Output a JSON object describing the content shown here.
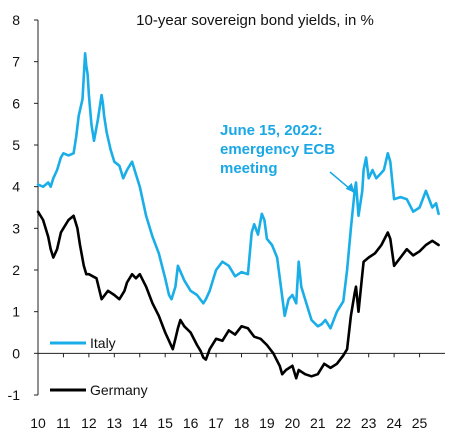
{
  "chart_data": {
    "type": "line",
    "title": "10-year sovereign bond yields, in %",
    "xlabel": "",
    "ylabel": "",
    "xlim": [
      2010,
      2026
    ],
    "ylim": [
      -1,
      8
    ],
    "grid": false,
    "legend_placement": "bottom-left",
    "x_ticks": [
      "10",
      "11",
      "12",
      "13",
      "14",
      "15",
      "16",
      "17",
      "18",
      "19",
      "20",
      "21",
      "22",
      "23",
      "24",
      "25"
    ],
    "y_ticks": [
      "-1",
      "0",
      "1",
      "2",
      "3",
      "4",
      "5",
      "6",
      "7",
      "8"
    ],
    "annotation": {
      "lines": [
        "June 15, 2022:",
        "emergency ECB",
        "meeting"
      ],
      "color": "#1aa7e6",
      "arrow_to": [
        2022.45,
        3.85
      ]
    },
    "series": [
      {
        "name": "Italy",
        "color": "#19aee8",
        "x": [
          2010.0,
          2010.2,
          2010.4,
          2010.5,
          2010.6,
          2010.75,
          2010.9,
          2011.0,
          2011.2,
          2011.4,
          2011.5,
          2011.6,
          2011.75,
          2011.85,
          2011.9,
          2011.95,
          2012.0,
          2012.1,
          2012.2,
          2012.35,
          2012.5,
          2012.55,
          2012.6,
          2012.7,
          2012.85,
          2013.0,
          2013.2,
          2013.35,
          2013.5,
          2013.7,
          2013.85,
          2014.0,
          2014.25,
          2014.5,
          2014.75,
          2015.0,
          2015.15,
          2015.25,
          2015.4,
          2015.5,
          2015.75,
          2016.0,
          2016.25,
          2016.5,
          2016.6,
          2016.75,
          2016.9,
          2017.0,
          2017.25,
          2017.5,
          2017.75,
          2018.0,
          2018.25,
          2018.4,
          2018.5,
          2018.65,
          2018.8,
          2018.9,
          2019.0,
          2019.2,
          2019.4,
          2019.55,
          2019.7,
          2019.85,
          2020.0,
          2020.15,
          2020.25,
          2020.35,
          2020.5,
          2020.75,
          2021.0,
          2021.15,
          2021.3,
          2021.5,
          2021.75,
          2022.0,
          2022.15,
          2022.3,
          2022.45,
          2022.5,
          2022.6,
          2022.75,
          2022.8,
          2022.9,
          2023.0,
          2023.15,
          2023.3,
          2023.45,
          2023.6,
          2023.75,
          2023.85,
          2024.0,
          2024.25,
          2024.5,
          2024.75,
          2025.0,
          2025.25,
          2025.5,
          2025.65,
          2025.75
        ],
        "values": [
          4.05,
          4.0,
          4.1,
          4.0,
          4.2,
          4.4,
          4.7,
          4.8,
          4.75,
          4.8,
          5.2,
          5.7,
          6.1,
          7.2,
          6.9,
          6.7,
          6.2,
          5.5,
          5.1,
          5.6,
          6.2,
          6.0,
          5.7,
          5.3,
          4.9,
          4.6,
          4.5,
          4.2,
          4.4,
          4.6,
          4.3,
          4.0,
          3.3,
          2.8,
          2.4,
          1.8,
          1.4,
          1.3,
          1.6,
          2.1,
          1.75,
          1.5,
          1.4,
          1.2,
          1.3,
          1.5,
          1.8,
          2.0,
          2.2,
          2.1,
          1.85,
          1.95,
          1.9,
          2.9,
          3.1,
          2.85,
          3.35,
          3.2,
          2.75,
          2.6,
          2.3,
          1.6,
          0.9,
          1.3,
          1.4,
          1.2,
          2.2,
          1.6,
          1.3,
          0.8,
          0.65,
          0.7,
          0.8,
          0.6,
          1.0,
          1.25,
          2.0,
          3.0,
          3.9,
          4.1,
          3.3,
          3.9,
          4.4,
          4.7,
          4.2,
          4.4,
          4.2,
          4.3,
          4.4,
          4.8,
          4.6,
          3.7,
          3.75,
          3.7,
          3.4,
          3.5,
          3.9,
          3.5,
          3.6,
          3.35
        ]
      },
      {
        "name": "Germany",
        "color": "#000000",
        "x": [
          2010.0,
          2010.2,
          2010.4,
          2010.5,
          2010.6,
          2010.75,
          2010.9,
          2011.0,
          2011.2,
          2011.4,
          2011.55,
          2011.65,
          2011.8,
          2011.9,
          2012.0,
          2012.3,
          2012.5,
          2012.75,
          2013.0,
          2013.2,
          2013.4,
          2013.5,
          2013.7,
          2013.85,
          2014.0,
          2014.25,
          2014.5,
          2014.75,
          2015.0,
          2015.15,
          2015.3,
          2015.4,
          2015.5,
          2015.6,
          2015.75,
          2016.0,
          2016.25,
          2016.4,
          2016.5,
          2016.6,
          2016.75,
          2017.0,
          2017.25,
          2017.5,
          2017.75,
          2018.0,
          2018.25,
          2018.5,
          2018.75,
          2019.0,
          2019.25,
          2019.5,
          2019.6,
          2019.75,
          2020.0,
          2020.15,
          2020.25,
          2020.5,
          2020.75,
          2021.0,
          2021.25,
          2021.5,
          2021.75,
          2022.0,
          2022.15,
          2022.3,
          2022.45,
          2022.5,
          2022.6,
          2022.75,
          2022.8,
          2023.0,
          2023.25,
          2023.5,
          2023.75,
          2023.85,
          2024.0,
          2024.25,
          2024.5,
          2024.75,
          2025.0,
          2025.25,
          2025.5,
          2025.75
        ],
        "values": [
          3.4,
          3.2,
          2.8,
          2.5,
          2.3,
          2.5,
          2.9,
          3.0,
          3.2,
          3.3,
          3.0,
          2.6,
          2.1,
          1.9,
          1.9,
          1.8,
          1.3,
          1.5,
          1.4,
          1.3,
          1.5,
          1.7,
          1.9,
          1.8,
          1.9,
          1.6,
          1.2,
          0.9,
          0.5,
          0.3,
          0.1,
          0.35,
          0.6,
          0.8,
          0.65,
          0.5,
          0.2,
          0.05,
          -0.1,
          -0.15,
          0.1,
          0.35,
          0.3,
          0.55,
          0.45,
          0.65,
          0.6,
          0.4,
          0.35,
          0.2,
          0.0,
          -0.3,
          -0.5,
          -0.4,
          -0.3,
          -0.6,
          -0.4,
          -0.5,
          -0.55,
          -0.5,
          -0.25,
          -0.35,
          -0.25,
          -0.05,
          0.1,
          0.9,
          1.45,
          1.6,
          1.0,
          1.9,
          2.2,
          2.3,
          2.4,
          2.6,
          2.9,
          2.75,
          2.1,
          2.3,
          2.5,
          2.35,
          2.45,
          2.6,
          2.7,
          2.6
        ]
      }
    ],
    "legend": [
      {
        "label": "Italy",
        "color": "#19aee8"
      },
      {
        "label": "Germany",
        "color": "#000000"
      }
    ]
  }
}
